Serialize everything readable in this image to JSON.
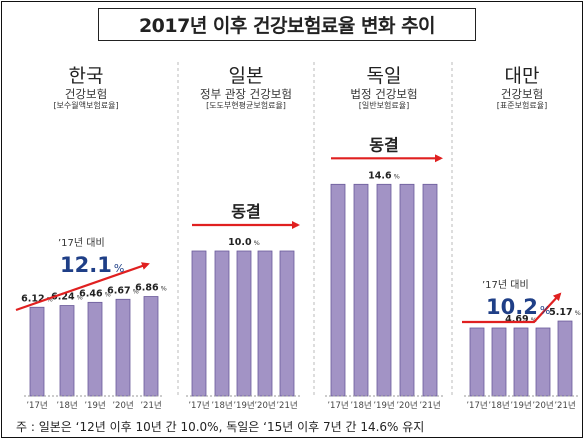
{
  "title": "2017년 이후 건강보험료율 변화 추이",
  "footnote": "주 : 일본은 ‘12년 이후 10년 간 10.0%, 독일은 ‘15년 이후 7년 간 14.6% 유지",
  "colors": {
    "bar_fill": "#a293c5",
    "bar_stroke": "#6a5a9a",
    "arrow": "#e02020",
    "accent_text": "#1f3f87"
  },
  "chart_data": [
    {
      "type": "bar",
      "country": "한국",
      "subtitle": "건강보험",
      "subtitle2": "[보수월액보험료율]",
      "categories": [
        "’17년",
        "’18년",
        "’19년",
        "’20년",
        "’21년"
      ],
      "values": [
        6.12,
        6.24,
        6.46,
        6.67,
        6.86
      ],
      "labels": [
        "6.12",
        "6.24",
        "6.46",
        "6.67",
        "6.86"
      ],
      "unit": "%",
      "comparison": {
        "label": "’17년 대비",
        "value": "12.1",
        "unit": "%"
      },
      "trend": "up"
    },
    {
      "type": "bar",
      "country": "일본",
      "subtitle": "정부 관장 건강보험",
      "subtitle2": "[도도부현평균보험료율]",
      "categories": [
        "’17년",
        "’18년",
        "’19년",
        "’20년",
        "’21년"
      ],
      "values": [
        10.0,
        10.0,
        10.0,
        10.0,
        10.0
      ],
      "labels": [
        "10.0"
      ],
      "unit": "%",
      "status": "동결",
      "trend": "flat"
    },
    {
      "type": "bar",
      "country": "독일",
      "subtitle": "법정 건강보험",
      "subtitle2": "[일반보험료율]",
      "categories": [
        "’17년",
        "’18년",
        "’19년",
        "’20년",
        "’21년"
      ],
      "values": [
        14.6,
        14.6,
        14.6,
        14.6,
        14.6
      ],
      "labels": [
        "14.6"
      ],
      "unit": "%",
      "status": "동결",
      "trend": "flat"
    },
    {
      "type": "bar",
      "country": "대만",
      "subtitle": "건강보험",
      "subtitle2": "[표준보험료율]",
      "categories": [
        "’17년",
        "’18년",
        "’19년",
        "’20년",
        "’21년"
      ],
      "values": [
        4.69,
        4.69,
        4.69,
        4.69,
        5.17
      ],
      "labels": [
        "4.69",
        "5.17"
      ],
      "unit": "%",
      "comparison": {
        "label": "’17년 대비",
        "value": "10.2",
        "unit": "%"
      },
      "trend": "up"
    }
  ]
}
